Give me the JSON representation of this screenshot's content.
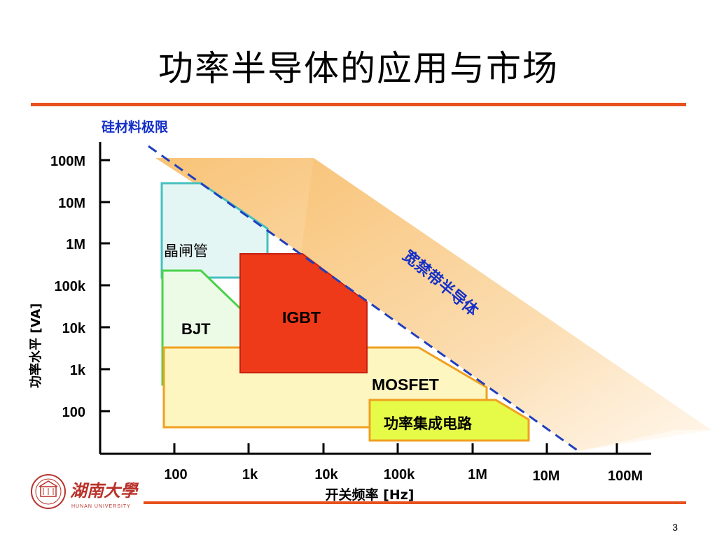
{
  "slide": {
    "title": "功率半导体的应用与市场",
    "page_number": "3",
    "logo_text": "湖南大學",
    "logo_subtext": "HUNAN UNIVERSITY"
  },
  "colors": {
    "rule": "#e8501e",
    "limit_line": "#1f3fbf",
    "annotation": "#1530c8",
    "wbg_band": "#f8c77e",
    "thyristor": "#45c0c0",
    "bjt": "#4ad24a",
    "igbt": "#e83418",
    "mosfet": "#f0a020",
    "pic": "#8fc41a"
  },
  "chart_data": {
    "type": "area",
    "xlabel": "开关频率 [Hz]",
    "ylabel": "功率水平 [VA]",
    "x_ticks": [
      "100",
      "1k",
      "10k",
      "100k",
      "1M",
      "10M",
      "100M"
    ],
    "y_ticks": [
      "100M",
      "10M",
      "1M",
      "100k",
      "10k",
      "1k",
      "100"
    ],
    "x_scale": "log",
    "y_scale": "log",
    "xlim": [
      20,
      200000000
    ],
    "ylim": [
      10,
      200000000
    ],
    "limit_line_label": "硅材料极限",
    "wbg_label": "宽禁带半导体",
    "regions": [
      {
        "name": "晶闸管",
        "points": [
          [
            60,
            60000000
          ],
          [
            200,
            60000000
          ],
          [
            1500,
            5000000
          ],
          [
            1500,
            60000
          ]
        ],
        "bottom": 60000
      },
      {
        "name": "BJT",
        "points": [
          [
            60,
            30000
          ],
          [
            60,
            300
          ],
          [
            1000,
            300
          ],
          [
            1000,
            3000
          ],
          [
            700,
            10000
          ],
          [
            250,
            30000
          ]
        ]
      },
      {
        "name": "IGBT",
        "points": [
          [
            700,
            150000
          ],
          [
            700,
            1000
          ],
          [
            50000,
            1000
          ],
          [
            50000,
            500000
          ],
          [
            20000,
            4000000
          ],
          [
            700,
            4000000
          ]
        ]
      },
      {
        "name": "MOSFET",
        "points": [
          [
            60,
            3000
          ],
          [
            60,
            100
          ],
          [
            1500000,
            100
          ],
          [
            1500000,
            300
          ],
          [
            200000,
            3000
          ]
        ]
      },
      {
        "name": "功率集成电路",
        "points": [
          [
            40000,
            300
          ],
          [
            40000,
            30
          ],
          [
            6000000,
            30
          ],
          [
            6000000,
            200
          ],
          [
            1500000,
            300
          ]
        ]
      }
    ]
  }
}
